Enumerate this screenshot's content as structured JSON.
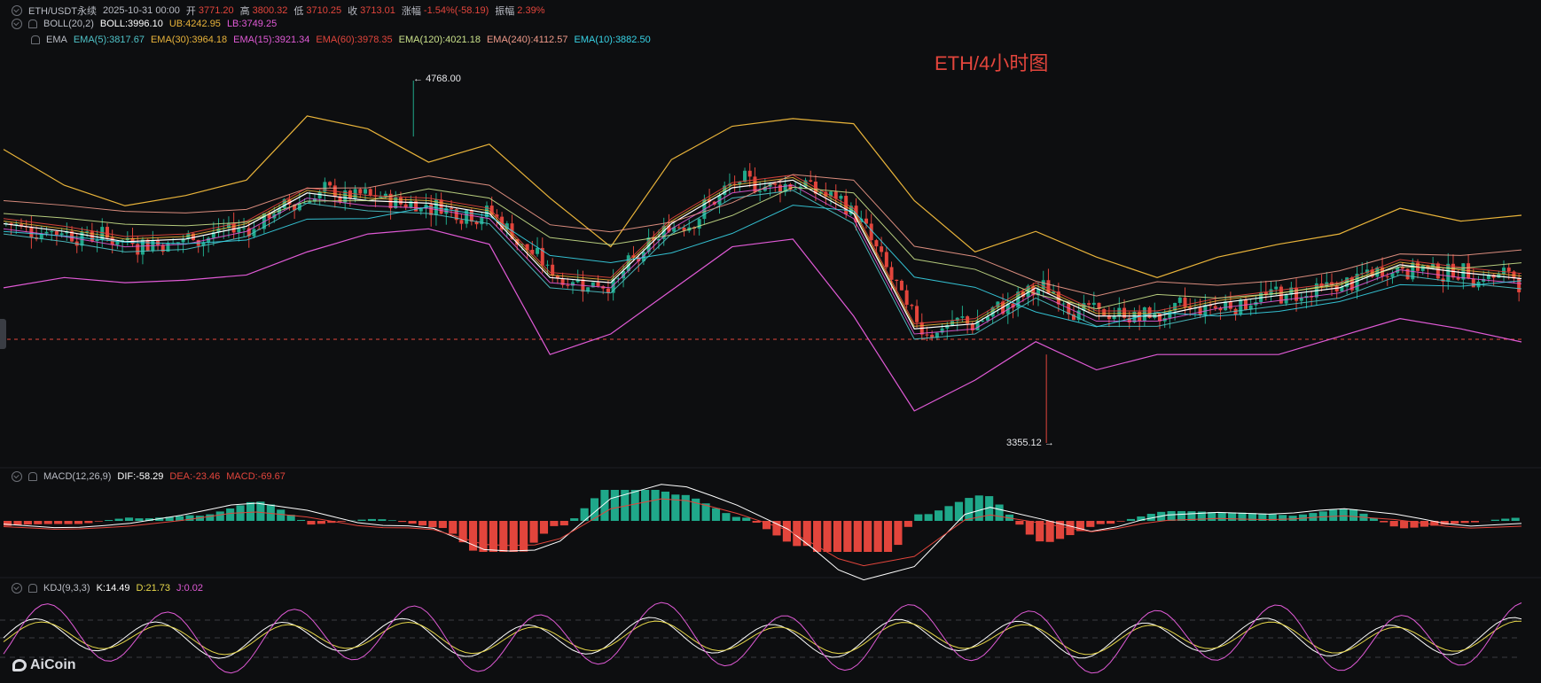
{
  "header": {
    "pair": "ETH/USDT永续",
    "datetime": "2025-10-31 00:00",
    "open_label": "开",
    "open": "3771.20",
    "high_label": "高",
    "high": "3800.32",
    "low_label": "低",
    "low": "3710.25",
    "close_label": "收",
    "close": "3713.01",
    "change_label": "涨幅",
    "change": "-1.54%(-58.19)",
    "amp_label": "振幅",
    "amp": "2.39%"
  },
  "boll": {
    "name": "BOLL(20,2)",
    "mid": "BOLL:3996.10",
    "ub": "UB:4242.95",
    "lb": "LB:3749.25"
  },
  "ema": {
    "name": "EMA",
    "items": [
      "EMA(5):3817.67",
      "EMA(30):3964.18",
      "EMA(15):3921.34",
      "EMA(60):3978.35",
      "EMA(120):4021.18",
      "EMA(240):4112.57",
      "EMA(10):3882.50"
    ],
    "colors": [
      "#4fc3c8",
      "#e8b33a",
      "#e05ad6",
      "#e2453c",
      "#c9e08a",
      "#f09a8a",
      "#37d3e6"
    ]
  },
  "macd": {
    "name": "MACD(12,26,9)",
    "dif": "DIF:-58.29",
    "dea": "DEA:-23.46",
    "macd": "MACD:-69.67"
  },
  "kdj": {
    "name": "KDJ(9,3,3)",
    "k": "K:14.49",
    "d": "D:21.73",
    "j": "J:0.02"
  },
  "overlay_title": "ETH/4小时图",
  "annotations": {
    "high_mark": "4768.00",
    "low_mark": "3355.12"
  },
  "logo": "AiCoin",
  "colors": {
    "up": "#1fa88a",
    "down": "#e2453c",
    "bg": "#0d0e10",
    "grid": "#1d1f23"
  },
  "chart_data": [
    {
      "type": "line",
      "title": "ETH/4小时图",
      "ylim": [
        3355.12,
        4768.0
      ],
      "x": [
        0,
        4,
        8,
        12,
        16,
        20,
        24,
        28,
        32,
        36,
        40,
        44,
        48,
        52,
        56,
        60,
        64,
        68,
        72,
        76,
        80,
        84,
        88,
        92,
        96,
        100
      ],
      "series": [
        {
          "name": "BOLL",
          "values": [
            4210,
            4180,
            4140,
            4150,
            4200,
            4330,
            4300,
            4290,
            4250,
            4000,
            3980,
            4210,
            4350,
            4380,
            4250,
            3800,
            3820,
            3960,
            3850,
            3850,
            3900,
            3930,
            3960,
            4050,
            4020,
            3996
          ]
        },
        {
          "name": "UB",
          "values": [
            4500,
            4360,
            4280,
            4320,
            4380,
            4630,
            4580,
            4450,
            4520,
            4310,
            4120,
            4460,
            4590,
            4620,
            4600,
            4300,
            4100,
            4180,
            4080,
            4000,
            4080,
            4130,
            4170,
            4270,
            4220,
            4243
          ]
        },
        {
          "name": "LB",
          "values": [
            3960,
            4000,
            3980,
            3990,
            4010,
            4100,
            4170,
            4190,
            4130,
            3700,
            3780,
            3950,
            4120,
            4150,
            3850,
            3480,
            3600,
            3750,
            3640,
            3700,
            3700,
            3700,
            3770,
            3840,
            3800,
            3749
          ]
        }
      ]
    },
    {
      "type": "bar",
      "title": "MACD(12,26,9)",
      "series": [
        {
          "name": "DIF",
          "values": [
            0
          ]
        },
        {
          "name": "DEA",
          "values": [
            0
          ]
        },
        {
          "name": "MACD",
          "values": [
            -69.67
          ]
        }
      ],
      "last": {
        "DIF": -58.29,
        "DEA": -23.46,
        "MACD": -69.67
      }
    },
    {
      "type": "line",
      "title": "KDJ(9,3,3)",
      "last": {
        "K": 14.49,
        "D": 21.73,
        "J": 0.02
      }
    }
  ]
}
